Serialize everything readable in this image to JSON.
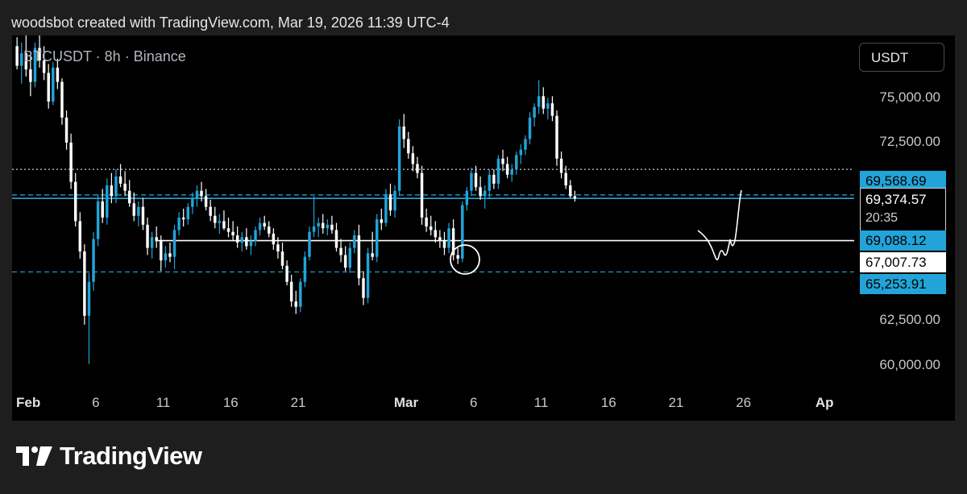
{
  "header": {
    "credit": "woodsbot created with TradingView.com, Mar 19, 2026 11:39 UTC-4"
  },
  "symbol": {
    "label": "BTCUSDT · 8h · Binance"
  },
  "currency_button": "USDT",
  "footer": {
    "brand": "TradingView"
  },
  "price_labels": {
    "upper_blue": "69,568.69",
    "last_price": "69,374.57",
    "countdown": "20:35",
    "mid_blue": "69,088.12",
    "white_level": "67,007.73",
    "lower_blue": "65,253.91"
  },
  "colors": {
    "up": "#22a4d8",
    "down": "#ffffff",
    "dashed_line": "#2aa3d6",
    "background": "#000000"
  },
  "chart_data": {
    "type": "candlestick",
    "timeframe": "8h",
    "y_ticks": [
      "75,000.00",
      "72,500.00",
      "62,500.00",
      "60,000.00"
    ],
    "y_tick_values": [
      75000,
      72500,
      62500,
      60000
    ],
    "ylim": [
      59000,
      78500
    ],
    "x_ticks": [
      "Feb",
      "6",
      "11",
      "16",
      "21",
      "Mar",
      "6",
      "11",
      "16",
      "21",
      "26",
      "Ap"
    ],
    "x_tick_days": [
      1,
      6,
      11,
      16,
      21,
      29,
      34,
      39,
      44,
      49,
      54,
      60
    ],
    "xlim_days": [
      -0.2,
      62.2
    ],
    "grid": false,
    "levels": [
      {
        "price": 71000,
        "style": "dotted",
        "color": "#cccccc"
      },
      {
        "price": 69568.69,
        "style": "dashed",
        "color": "#2aa3d6"
      },
      {
        "price": 69374.57,
        "style": "solid",
        "color": "#2aa3d6"
      },
      {
        "price": 67007.73,
        "style": "solid",
        "color": "#ffffff",
        "from_day": 10.4
      },
      {
        "price": 65253.91,
        "style": "dashed",
        "color": "#2aa3d6"
      }
    ],
    "candles": [
      [
        77900,
        78400,
        76600,
        76800
      ],
      [
        76800,
        78100,
        75800,
        77500
      ],
      [
        77500,
        78500,
        76200,
        76600
      ],
      [
        76600,
        77400,
        75100,
        75900
      ],
      [
        75900,
        78100,
        75600,
        77800
      ],
      [
        77800,
        78500,
        76700,
        77100
      ],
      [
        77100,
        77900,
        76000,
        76400
      ],
      [
        76400,
        76900,
        74400,
        74800
      ],
      [
        74800,
        77000,
        74600,
        76700
      ],
      [
        76700,
        77200,
        75500,
        75900
      ],
      [
        75900,
        76100,
        73500,
        73900
      ],
      [
        73900,
        74300,
        72100,
        72500
      ],
      [
        72500,
        73000,
        69900,
        70300
      ],
      [
        70300,
        70800,
        67800,
        68100
      ],
      [
        68100,
        68600,
        66000,
        66400
      ],
      [
        66400,
        66800,
        62300,
        62800
      ],
      [
        62800,
        65200,
        60100,
        64700
      ],
      [
        64700,
        67500,
        64200,
        67100
      ],
      [
        67100,
        69600,
        66700,
        69200
      ],
      [
        69200,
        69900,
        68000,
        68300
      ],
      [
        68300,
        70500,
        67900,
        70100
      ],
      [
        70100,
        70800,
        69100,
        69500
      ],
      [
        69500,
        71000,
        69100,
        70600
      ],
      [
        70600,
        71300,
        70000,
        70200
      ],
      [
        70200,
        70900,
        69500,
        69800
      ],
      [
        69800,
        70400,
        68900,
        69100
      ],
      [
        69100,
        69700,
        68100,
        68400
      ],
      [
        68400,
        69200,
        67800,
        68900
      ],
      [
        68900,
        69400,
        67600,
        67900
      ],
      [
        67900,
        68300,
        66200,
        66600
      ],
      [
        66600,
        67500,
        66000,
        67200
      ],
      [
        67200,
        67800,
        66600,
        67000
      ],
      [
        67000,
        67300,
        65300,
        65900
      ],
      [
        65900,
        66700,
        65500,
        66300
      ],
      [
        66300,
        66900,
        65800,
        66100
      ],
      [
        66100,
        67900,
        65400,
        67600
      ],
      [
        67600,
        68600,
        67300,
        68300
      ],
      [
        68300,
        68800,
        67800,
        68200
      ],
      [
        68200,
        69100,
        67900,
        68900
      ],
      [
        68900,
        69700,
        68500,
        69400
      ],
      [
        69400,
        70100,
        68900,
        69800
      ],
      [
        69800,
        70300,
        69200,
        69500
      ],
      [
        69500,
        69900,
        68700,
        68900
      ],
      [
        68900,
        69300,
        68100,
        68400
      ],
      [
        68400,
        68900,
        67700,
        68000
      ],
      [
        68000,
        68500,
        67400,
        68100
      ],
      [
        68100,
        68700,
        67600,
        67700
      ],
      [
        67700,
        68300,
        67200,
        67500
      ],
      [
        67500,
        68100,
        67000,
        67300
      ],
      [
        67300,
        67800,
        66600,
        66900
      ],
      [
        66900,
        67500,
        66400,
        67200
      ],
      [
        67200,
        67700,
        66500,
        66700
      ],
      [
        66700,
        67300,
        66200,
        67000
      ],
      [
        67000,
        67800,
        66700,
        67600
      ],
      [
        67600,
        68300,
        67300,
        68000
      ],
      [
        68000,
        68400,
        67600,
        67800
      ],
      [
        67800,
        68100,
        67200,
        67400
      ],
      [
        67400,
        67700,
        66500,
        66800
      ],
      [
        66800,
        67200,
        66000,
        66400
      ],
      [
        66400,
        66900,
        65400,
        65600
      ],
      [
        65600,
        65900,
        64500,
        64700
      ],
      [
        64700,
        65100,
        63300,
        63600
      ],
      [
        63600,
        64200,
        62900,
        63300
      ],
      [
        63300,
        64900,
        63000,
        64700
      ],
      [
        64700,
        66400,
        64400,
        66100
      ],
      [
        66100,
        67800,
        65900,
        67500
      ],
      [
        67500,
        69500,
        67200,
        67800
      ],
      [
        67800,
        68300,
        67200,
        68000
      ],
      [
        68000,
        68500,
        67400,
        67700
      ],
      [
        67700,
        68200,
        67300,
        67900
      ],
      [
        67900,
        68400,
        67400,
        67600
      ],
      [
        67600,
        68000,
        66400,
        66600
      ],
      [
        66600,
        67100,
        65800,
        66200
      ],
      [
        66200,
        66700,
        65300,
        65500
      ],
      [
        65500,
        66900,
        65200,
        66600
      ],
      [
        66600,
        67600,
        66300,
        67300
      ],
      [
        67300,
        67900,
        64500,
        64900
      ],
      [
        64900,
        65300,
        63400,
        63800
      ],
      [
        63800,
        66600,
        63500,
        66300
      ],
      [
        66300,
        67500,
        65900,
        66100
      ],
      [
        66100,
        68500,
        65800,
        68200
      ],
      [
        68200,
        68800,
        67600,
        68000
      ],
      [
        68000,
        69900,
        67800,
        69600
      ],
      [
        69600,
        70200,
        68400,
        68700
      ],
      [
        68700,
        70100,
        68300,
        69800
      ],
      [
        69800,
        73800,
        69500,
        73400
      ],
      [
        73400,
        74100,
        72200,
        72700
      ],
      [
        72700,
        73100,
        71600,
        71900
      ],
      [
        71900,
        72300,
        70900,
        71300
      ],
      [
        71300,
        71700,
        70500,
        70800
      ],
      [
        70800,
        71200,
        67900,
        68300
      ],
      [
        68300,
        68800,
        67500,
        67800
      ],
      [
        67800,
        68400,
        67300,
        67600
      ],
      [
        67600,
        68100,
        66900,
        67200
      ],
      [
        67200,
        67600,
        66600,
        67000
      ],
      [
        67000,
        67500,
        66200,
        66600
      ],
      [
        66600,
        68000,
        66300,
        67700
      ],
      [
        67700,
        68200,
        65900,
        66200
      ],
      [
        66200,
        66600,
        65700,
        66000
      ],
      [
        66000,
        69200,
        65800,
        69000
      ],
      [
        69000,
        70000,
        68700,
        69800
      ],
      [
        69800,
        71100,
        69500,
        70800
      ],
      [
        70800,
        71200,
        69800,
        70000
      ],
      [
        70000,
        70600,
        69300,
        69500
      ],
      [
        69500,
        70100,
        68800,
        69800
      ],
      [
        69800,
        71000,
        69400,
        70700
      ],
      [
        70700,
        71000,
        69900,
        70200
      ],
      [
        70200,
        71800,
        69900,
        71600
      ],
      [
        71600,
        72100,
        70900,
        71300
      ],
      [
        71300,
        71700,
        70500,
        70700
      ],
      [
        70700,
        71300,
        70300,
        71000
      ],
      [
        71000,
        72000,
        70700,
        71800
      ],
      [
        71800,
        72400,
        71300,
        72100
      ],
      [
        72100,
        72900,
        71800,
        72700
      ],
      [
        72700,
        74200,
        72400,
        73900
      ],
      [
        73900,
        74700,
        73400,
        74500
      ],
      [
        74500,
        76000,
        74100,
        75100
      ],
      [
        75100,
        75600,
        74100,
        74400
      ],
      [
        74400,
        75000,
        73800,
        74700
      ],
      [
        74700,
        75100,
        73700,
        74000
      ],
      [
        74000,
        74300,
        71200,
        71600
      ],
      [
        71600,
        72000,
        70500,
        70800
      ],
      [
        70800,
        71200,
        69900,
        70100
      ],
      [
        70100,
        70400,
        69400,
        69500
      ],
      [
        69500,
        69800,
        69200,
        69375
      ]
    ]
  }
}
